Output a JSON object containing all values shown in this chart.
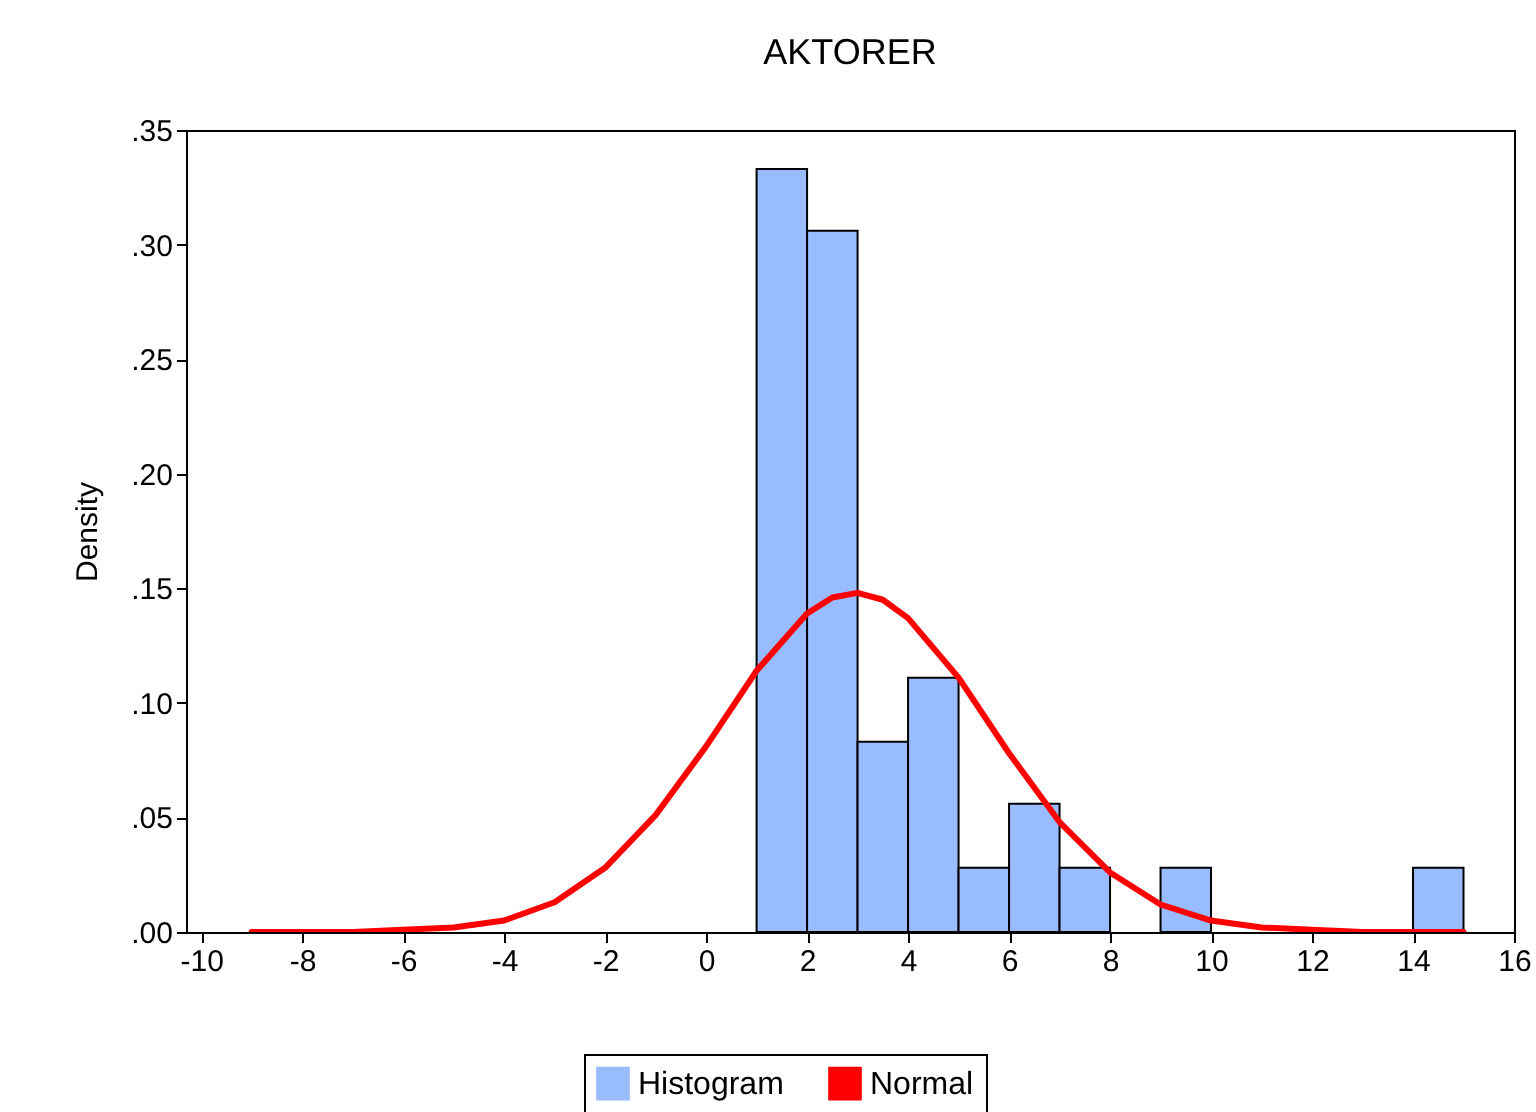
{
  "chart_data": {
    "type": "histogram",
    "title": "AKTORER",
    "ylabel": "Density",
    "bins": [
      1,
      2,
      3,
      4,
      5,
      6,
      7,
      8,
      9,
      10,
      11,
      12,
      13,
      14,
      15
    ],
    "series": [
      {
        "name": "Histogram",
        "color": "#99bbff",
        "values": [
          0.333,
          0.306,
          0.083,
          0.111,
          0.028,
          0.056,
          0.028,
          0,
          0.028,
          0,
          0,
          0,
          0,
          0.028
        ]
      },
      {
        "name": "Normal",
        "type": "line",
        "color": "#ff0000",
        "x": [
          -9,
          -8,
          -7,
          -6,
          -5,
          -4,
          -3,
          -2,
          -1,
          0,
          1,
          2,
          2.5,
          3,
          3.5,
          4,
          5,
          6,
          7,
          8,
          9,
          10,
          11,
          12,
          13,
          14,
          15
        ],
        "values": [
          0,
          0,
          0,
          0.001,
          0.002,
          0.005,
          0.013,
          0.028,
          0.051,
          0.081,
          0.114,
          0.139,
          0.146,
          0.148,
          0.145,
          0.137,
          0.111,
          0.078,
          0.048,
          0.026,
          0.012,
          0.005,
          0.002,
          0.001,
          0,
          0,
          0
        ]
      }
    ],
    "xlim": [
      -10.3,
      16
    ],
    "xticks": [
      -10,
      -8,
      -6,
      -4,
      -2,
      0,
      2,
      4,
      6,
      8,
      10,
      12,
      14,
      16
    ],
    "ylim": [
      0,
      0.35
    ],
    "yticks": [
      {
        "value": 0,
        "label": ".00"
      },
      {
        "value": 0.05,
        "label": ".05"
      },
      {
        "value": 0.1,
        "label": ".10"
      },
      {
        "value": 0.15,
        "label": ".15"
      },
      {
        "value": 0.2,
        "label": ".20"
      },
      {
        "value": 0.25,
        "label": ".25"
      },
      {
        "value": 0.3,
        "label": ".30"
      },
      {
        "value": 0.35,
        "label": ".35"
      }
    ],
    "grid": false,
    "legend": "bottom",
    "line_style": "solid",
    "marker": "none"
  }
}
